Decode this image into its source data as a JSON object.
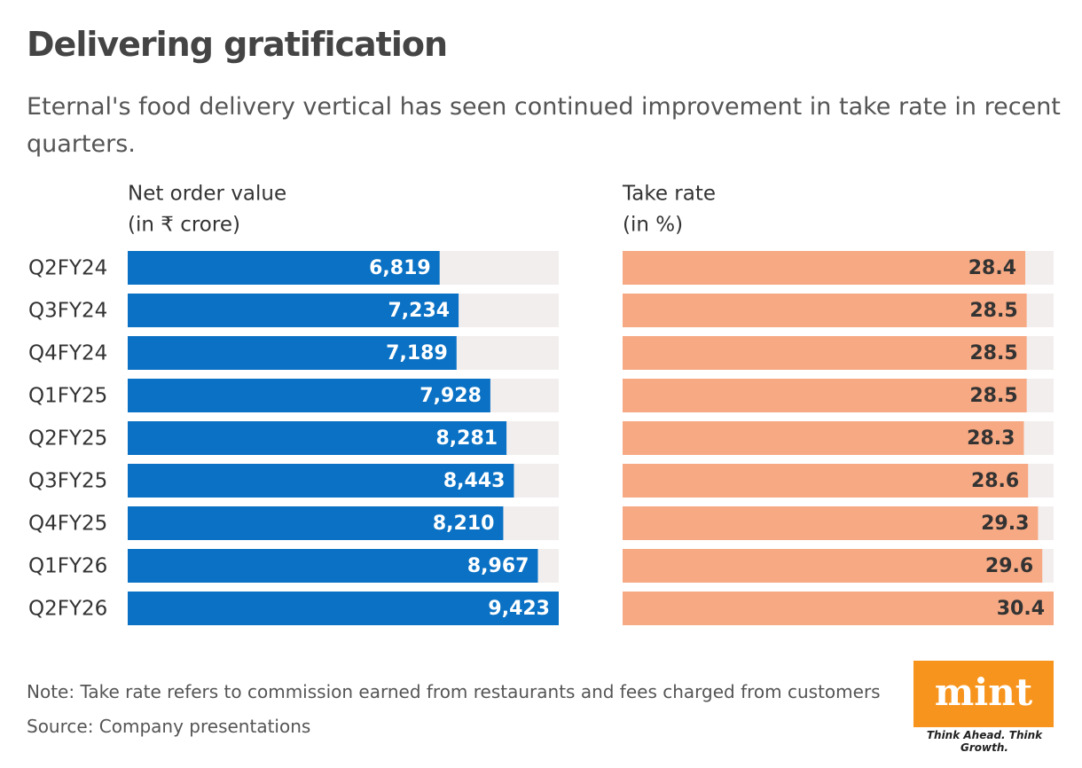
{
  "title": "Delivering gratification",
  "subtitle": "Eternal's food delivery vertical has seen continued improvement in take rate in recent quarters.",
  "chart_data": [
    {
      "type": "bar",
      "title": "Net order value",
      "unit": "(in ₹ crore)",
      "categories": [
        "Q2FY24",
        "Q3FY24",
        "Q4FY24",
        "Q1FY25",
        "Q2FY25",
        "Q3FY25",
        "Q4FY25",
        "Q1FY26",
        "Q2FY26"
      ],
      "values": [
        6819,
        7234,
        7189,
        7928,
        8281,
        8443,
        8210,
        8967,
        9423
      ],
      "value_labels": [
        "6,819",
        "7,234",
        "7,189",
        "7,928",
        "8,281",
        "8,443",
        "8,210",
        "8,967",
        "9,423"
      ],
      "xlim": [
        0,
        9423
      ],
      "color": "#0a71c4",
      "track_color": "#f2eeee",
      "label_color": "#ffffff"
    },
    {
      "type": "bar",
      "title": "Take rate",
      "unit": "(in %)",
      "values": [
        28.4,
        28.5,
        28.5,
        28.5,
        28.3,
        28.6,
        29.3,
        29.6,
        30.4
      ],
      "xlim": [
        0,
        30.4
      ],
      "color": "#f6a983",
      "track_color": "#f2eeee",
      "label_color": "#333333"
    }
  ],
  "note": "Note: Take rate refers to commission earned from restaurants and fees charged from customers",
  "source": "Source: Company presentations",
  "logo": {
    "name": "mint",
    "tagline": "Think Ahead. Think Growth."
  }
}
